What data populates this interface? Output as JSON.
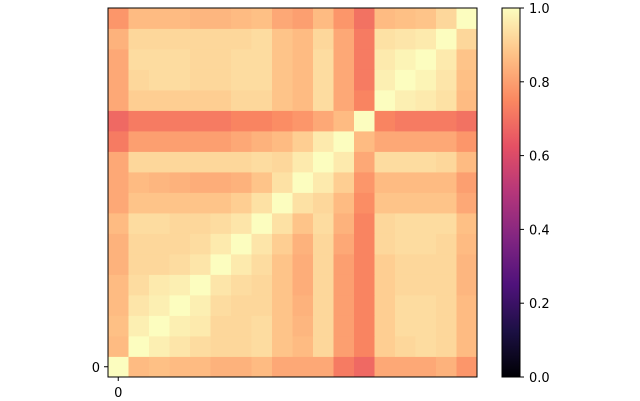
{
  "chart_data": {
    "type": "heatmap",
    "title": "",
    "xlabel": "",
    "ylabel": "",
    "rows": 18,
    "cols": 18,
    "x_tick_labels": [
      "0"
    ],
    "y_tick_labels": [
      "0"
    ],
    "origin": "lower",
    "colormap": "magma",
    "vmin": 0.0,
    "vmax": 1.0,
    "colorbar": {
      "ticks": [
        0.0,
        0.2,
        0.4,
        0.6,
        0.8,
        1.0
      ],
      "tick_labels": [
        "0.0",
        "0.2",
        "0.4",
        "0.6",
        "0.8",
        "1.0"
      ]
    },
    "values": [
      [
        1.0,
        0.86,
        0.87,
        0.86,
        0.86,
        0.84,
        0.84,
        0.86,
        0.82,
        0.82,
        0.82,
        0.72,
        0.68,
        0.82,
        0.82,
        0.82,
        0.84,
        0.78
      ],
      [
        0.86,
        1.0,
        0.97,
        0.95,
        0.93,
        0.92,
        0.92,
        0.93,
        0.88,
        0.86,
        0.92,
        0.8,
        0.74,
        0.9,
        0.92,
        0.93,
        0.92,
        0.86
      ],
      [
        0.87,
        0.97,
        1.0,
        0.97,
        0.96,
        0.92,
        0.92,
        0.93,
        0.88,
        0.85,
        0.92,
        0.8,
        0.74,
        0.9,
        0.93,
        0.93,
        0.92,
        0.86
      ],
      [
        0.86,
        0.95,
        0.97,
        1.0,
        0.97,
        0.93,
        0.92,
        0.92,
        0.88,
        0.84,
        0.92,
        0.8,
        0.74,
        0.9,
        0.93,
        0.93,
        0.92,
        0.86
      ],
      [
        0.86,
        0.93,
        0.96,
        0.97,
        1.0,
        0.95,
        0.93,
        0.92,
        0.88,
        0.83,
        0.92,
        0.8,
        0.74,
        0.9,
        0.92,
        0.92,
        0.92,
        0.85
      ],
      [
        0.84,
        0.92,
        0.92,
        0.93,
        0.95,
        1.0,
        0.96,
        0.93,
        0.88,
        0.83,
        0.92,
        0.8,
        0.74,
        0.9,
        0.92,
        0.92,
        0.92,
        0.85
      ],
      [
        0.84,
        0.92,
        0.92,
        0.92,
        0.93,
        0.96,
        1.0,
        0.95,
        0.9,
        0.84,
        0.92,
        0.82,
        0.74,
        0.92,
        0.93,
        0.93,
        0.92,
        0.86
      ],
      [
        0.86,
        0.93,
        0.93,
        0.92,
        0.92,
        0.93,
        0.95,
        1.0,
        0.94,
        0.88,
        0.93,
        0.84,
        0.74,
        0.92,
        0.93,
        0.93,
        0.93,
        0.87
      ],
      [
        0.82,
        0.88,
        0.88,
        0.88,
        0.88,
        0.88,
        0.9,
        0.94,
        1.0,
        0.94,
        0.92,
        0.86,
        0.76,
        0.88,
        0.88,
        0.88,
        0.88,
        0.82
      ],
      [
        0.82,
        0.86,
        0.85,
        0.84,
        0.83,
        0.83,
        0.84,
        0.88,
        0.94,
        1.0,
        0.96,
        0.9,
        0.78,
        0.86,
        0.86,
        0.86,
        0.86,
        0.8
      ],
      [
        0.82,
        0.92,
        0.92,
        0.92,
        0.92,
        0.92,
        0.92,
        0.93,
        0.92,
        0.96,
        1.0,
        0.96,
        0.82,
        0.93,
        0.93,
        0.93,
        0.92,
        0.86
      ],
      [
        0.72,
        0.8,
        0.8,
        0.8,
        0.8,
        0.8,
        0.82,
        0.84,
        0.86,
        0.9,
        0.96,
        1.0,
        0.86,
        0.82,
        0.82,
        0.82,
        0.82,
        0.78
      ],
      [
        0.68,
        0.72,
        0.72,
        0.72,
        0.72,
        0.72,
        0.74,
        0.74,
        0.76,
        0.78,
        0.82,
        0.86,
        1.0,
        0.74,
        0.72,
        0.72,
        0.72,
        0.7
      ],
      [
        0.82,
        0.9,
        0.9,
        0.9,
        0.9,
        0.9,
        0.92,
        0.92,
        0.88,
        0.86,
        0.93,
        0.82,
        0.74,
        1.0,
        0.97,
        0.96,
        0.94,
        0.86
      ],
      [
        0.82,
        0.92,
        0.93,
        0.93,
        0.92,
        0.92,
        0.93,
        0.93,
        0.88,
        0.86,
        0.93,
        0.82,
        0.72,
        0.97,
        1.0,
        0.98,
        0.95,
        0.87
      ],
      [
        0.82,
        0.93,
        0.93,
        0.93,
        0.92,
        0.92,
        0.93,
        0.93,
        0.88,
        0.86,
        0.93,
        0.82,
        0.72,
        0.96,
        0.98,
        1.0,
        0.96,
        0.88
      ],
      [
        0.84,
        0.92,
        0.92,
        0.92,
        0.92,
        0.92,
        0.92,
        0.93,
        0.88,
        0.86,
        0.92,
        0.82,
        0.72,
        0.94,
        0.95,
        0.96,
        1.0,
        0.92
      ],
      [
        0.78,
        0.86,
        0.86,
        0.86,
        0.85,
        0.85,
        0.86,
        0.87,
        0.82,
        0.8,
        0.86,
        0.78,
        0.7,
        0.86,
        0.87,
        0.88,
        0.92,
        1.0
      ]
    ]
  }
}
